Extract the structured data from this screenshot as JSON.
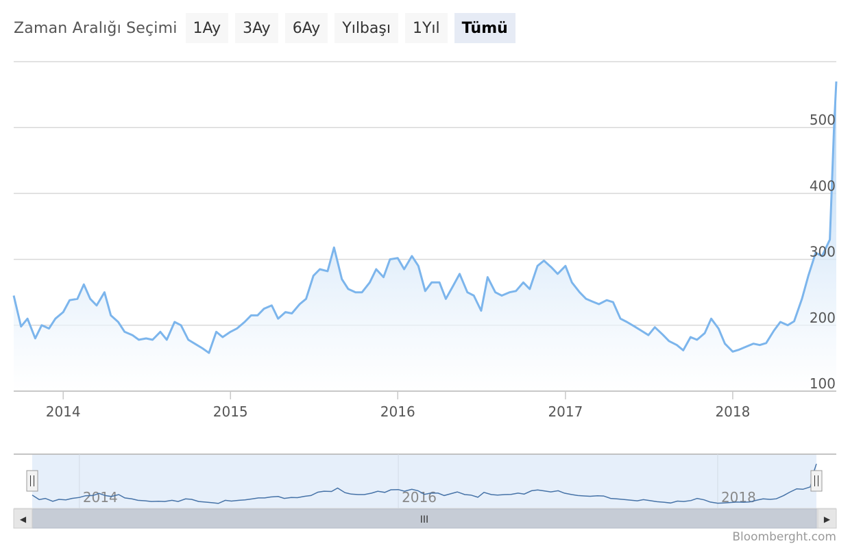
{
  "range_selector": {
    "label": "Zaman Aralığı Seçimi",
    "buttons": [
      {
        "label": "1Ay",
        "active": false
      },
      {
        "label": "3Ay",
        "active": false
      },
      {
        "label": "6Ay",
        "active": false
      },
      {
        "label": "Yılbaşı",
        "active": false
      },
      {
        "label": "1Yıl",
        "active": false
      },
      {
        "label": "Tümü",
        "active": true
      }
    ]
  },
  "credit": "Bloomberght.com",
  "navigator": {
    "labels": [
      "2014",
      "2016",
      "2018"
    ],
    "scrollbar_grip": "III",
    "left_arrow": "◀",
    "right_arrow": "▶"
  },
  "colors": {
    "series": "#7cb5ec",
    "grid": "#d8d8d8",
    "navigator_mask": "#e6effa"
  },
  "chart_data": {
    "type": "area",
    "title": "",
    "xlabel": "",
    "ylabel": "",
    "ylim": [
      100,
      600
    ],
    "xlim": [
      "2013-09-15",
      "2018-08-15"
    ],
    "y_ticks": [
      100,
      200,
      300,
      400,
      500
    ],
    "x_ticks": [
      "2014",
      "2015",
      "2016",
      "2017",
      "2018"
    ],
    "y_axis_side": "right",
    "grid": true,
    "legend": "none",
    "series": [
      {
        "x": [
          "2013-09-15",
          "2013-10-01",
          "2013-10-15",
          "2013-11-01",
          "2013-11-15",
          "2013-12-01",
          "2013-12-15",
          "2014-01-01",
          "2014-01-15",
          "2014-02-01",
          "2014-02-15",
          "2014-03-01",
          "2014-03-15",
          "2014-04-01",
          "2014-04-15",
          "2014-05-01",
          "2014-05-15",
          "2014-06-01",
          "2014-06-15",
          "2014-07-01",
          "2014-07-15",
          "2014-08-01",
          "2014-08-15",
          "2014-09-01",
          "2014-09-15",
          "2014-10-01",
          "2014-10-15",
          "2014-11-01",
          "2014-11-15",
          "2014-12-01",
          "2014-12-15",
          "2015-01-01",
          "2015-01-15",
          "2015-02-01",
          "2015-02-15",
          "2015-03-01",
          "2015-03-15",
          "2015-04-01",
          "2015-04-15",
          "2015-05-01",
          "2015-05-15",
          "2015-06-01",
          "2015-06-15",
          "2015-07-01",
          "2015-07-15",
          "2015-08-01",
          "2015-08-15",
          "2015-09-01",
          "2015-09-15",
          "2015-10-01",
          "2015-10-15",
          "2015-11-01",
          "2015-11-15",
          "2015-12-01",
          "2015-12-15",
          "2016-01-01",
          "2016-01-15",
          "2016-02-01",
          "2016-02-15",
          "2016-03-01",
          "2016-03-15",
          "2016-04-01",
          "2016-04-15",
          "2016-05-01",
          "2016-05-15",
          "2016-06-01",
          "2016-06-15",
          "2016-07-01",
          "2016-07-15",
          "2016-08-01",
          "2016-08-15",
          "2016-09-01",
          "2016-09-15",
          "2016-10-01",
          "2016-10-15",
          "2016-11-01",
          "2016-11-15",
          "2016-12-01",
          "2016-12-15",
          "2017-01-01",
          "2017-01-15",
          "2017-02-01",
          "2017-02-15",
          "2017-03-01",
          "2017-03-15",
          "2017-04-01",
          "2017-04-15",
          "2017-05-01",
          "2017-05-15",
          "2017-06-01",
          "2017-06-15",
          "2017-07-01",
          "2017-07-15",
          "2017-08-01",
          "2017-08-15",
          "2017-09-01",
          "2017-09-15",
          "2017-10-01",
          "2017-10-15",
          "2017-11-01",
          "2017-11-15",
          "2017-12-01",
          "2017-12-15",
          "2018-01-01",
          "2018-01-15",
          "2018-02-01",
          "2018-02-15",
          "2018-03-01",
          "2018-03-15",
          "2018-04-01",
          "2018-04-15",
          "2018-05-01",
          "2018-05-15",
          "2018-06-01",
          "2018-06-15",
          "2018-07-01",
          "2018-07-15",
          "2018-08-01",
          "2018-08-10",
          "2018-08-15"
        ],
        "values": [
          245,
          198,
          210,
          180,
          200,
          195,
          210,
          220,
          238,
          240,
          262,
          240,
          230,
          250,
          215,
          205,
          190,
          185,
          178,
          180,
          178,
          190,
          178,
          205,
          200,
          178,
          172,
          165,
          158,
          190,
          182,
          190,
          195,
          205,
          215,
          215,
          225,
          230,
          210,
          220,
          218,
          232,
          240,
          275,
          285,
          282,
          318,
          270,
          255,
          250,
          250,
          265,
          285,
          273,
          300,
          302,
          285,
          305,
          290,
          252,
          265,
          265,
          240,
          260,
          278,
          250,
          245,
          222,
          273,
          250,
          245,
          250,
          252,
          265,
          255,
          290,
          298,
          288,
          278,
          290,
          265,
          250,
          240,
          236,
          232,
          238,
          235,
          210,
          205,
          198,
          192,
          185,
          197,
          186,
          176,
          170,
          162,
          182,
          178,
          188,
          210,
          195,
          172,
          160,
          163,
          168,
          172,
          170,
          173,
          192,
          205,
          200,
          206,
          240,
          275,
          310,
          305,
          330,
          500,
          570
        ]
      }
    ]
  }
}
